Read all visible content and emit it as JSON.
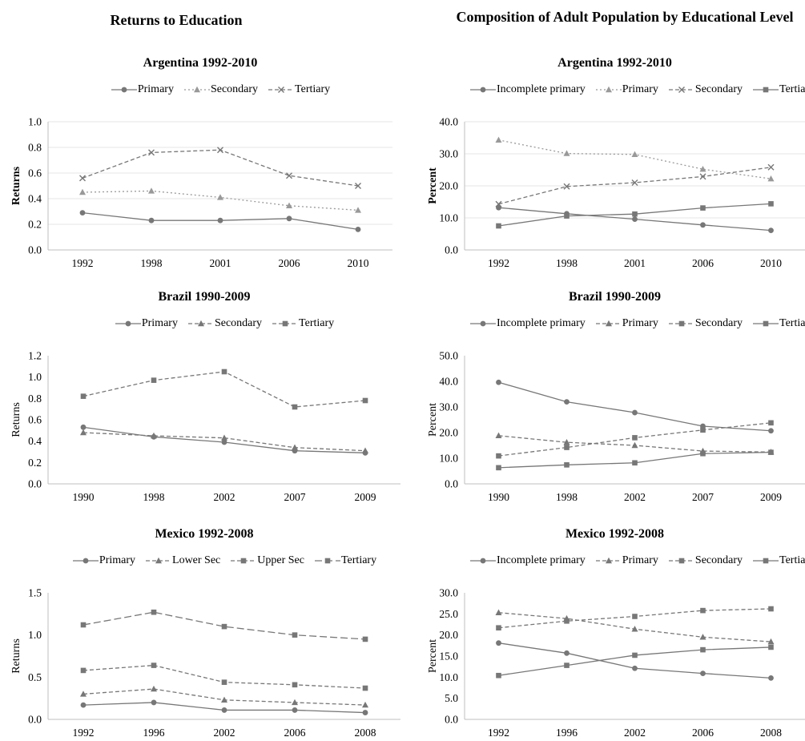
{
  "headings": {
    "left": "Returns to Education",
    "right": "Composition of Adult Population by Educational Level"
  },
  "chart_data": [
    {
      "type": "line",
      "title": "Argentina 1992-2010",
      "ylabel": "Returns",
      "ylabel_bold": true,
      "categories": [
        "1992",
        "1998",
        "2001",
        "2006",
        "2010"
      ],
      "ylim": [
        0,
        1.0
      ],
      "yticks": [
        "0.0",
        "0.2",
        "0.4",
        "0.6",
        "0.8",
        "1.0"
      ],
      "grid": true,
      "legend": "top",
      "series": [
        {
          "name": "Primary",
          "marker": "circle",
          "dash": "solid",
          "values": [
            0.29,
            0.23,
            0.23,
            0.245,
            0.16
          ]
        },
        {
          "name": "Secondary",
          "marker": "triangle",
          "dash": "dotted",
          "color": "#999999",
          "values": [
            0.45,
            0.46,
            0.41,
            0.345,
            0.31
          ]
        },
        {
          "name": "Tertiary",
          "marker": "x",
          "dash": "dashed",
          "values": [
            0.56,
            0.76,
            0.78,
            0.58,
            0.5
          ]
        }
      ]
    },
    {
      "type": "line",
      "title": "Argentina 1992-2010",
      "ylabel": "Percent",
      "ylabel_bold": true,
      "categories": [
        "1992",
        "1998",
        "2001",
        "2006",
        "2010"
      ],
      "ylim": [
        0,
        40
      ],
      "yticks": [
        "0.0",
        "10.0",
        "20.0",
        "30.0",
        "40.0"
      ],
      "grid": true,
      "legend": "top",
      "series": [
        {
          "name": "Incomplete primary",
          "marker": "circle",
          "dash": "solid",
          "values": [
            13.2,
            11.3,
            9.6,
            7.8,
            6.1
          ]
        },
        {
          "name": "Primary",
          "marker": "triangle",
          "dash": "dotted",
          "color": "#999999",
          "values": [
            34.3,
            30.1,
            29.8,
            25.2,
            22.2
          ]
        },
        {
          "name": "Secondary",
          "marker": "x",
          "dash": "dashed",
          "values": [
            14.3,
            19.8,
            21.0,
            22.9,
            25.8
          ]
        },
        {
          "name": "Tertiary",
          "marker": "square",
          "dash": "solid",
          "values": [
            7.5,
            10.6,
            11.2,
            13.1,
            14.4
          ]
        }
      ]
    },
    {
      "type": "line",
      "title": "Brazil 1990-2009",
      "ylabel": "Returns",
      "ylabel_bold": false,
      "categories": [
        "1990",
        "1998",
        "2002",
        "2007",
        "2009"
      ],
      "ylim": [
        0,
        1.2
      ],
      "yticks": [
        "0.0",
        "0.2",
        "0.4",
        "0.6",
        "0.8",
        "1.0",
        "1.2"
      ],
      "grid": false,
      "legend": "top",
      "series": [
        {
          "name": "Primary",
          "marker": "circle",
          "dash": "solid",
          "values": [
            0.53,
            0.44,
            0.39,
            0.31,
            0.29
          ]
        },
        {
          "name": "Secondary",
          "marker": "triangle",
          "dash": "dashed",
          "values": [
            0.48,
            0.45,
            0.43,
            0.34,
            0.31
          ]
        },
        {
          "name": "Tertiary",
          "marker": "square",
          "dash": "dashed",
          "values": [
            0.82,
            0.97,
            1.05,
            0.72,
            0.78
          ]
        }
      ]
    },
    {
      "type": "line",
      "title": "Brazil 1990-2009",
      "ylabel": "Percent",
      "ylabel_bold": false,
      "categories": [
        "1990",
        "1998",
        "2002",
        "2007",
        "2009"
      ],
      "ylim": [
        0,
        50
      ],
      "yticks": [
        "0.0",
        "10.0",
        "20.0",
        "30.0",
        "40.0",
        "50.0"
      ],
      "grid": false,
      "legend": "top",
      "series": [
        {
          "name": "Incomplete primary",
          "marker": "circle",
          "dash": "solid",
          "values": [
            39.6,
            32.0,
            27.8,
            22.5,
            20.7
          ]
        },
        {
          "name": "Primary",
          "marker": "triangle",
          "dash": "dashed",
          "values": [
            18.8,
            16.2,
            15.0,
            12.8,
            12.4
          ]
        },
        {
          "name": "Secondary",
          "marker": "square",
          "dash": "dashed",
          "values": [
            10.9,
            14.2,
            18.0,
            21.0,
            23.8
          ]
        },
        {
          "name": "Tertiary",
          "marker": "square",
          "dash": "solid",
          "values": [
            6.3,
            7.4,
            8.2,
            11.8,
            12.3
          ]
        }
      ]
    },
    {
      "type": "line",
      "title": "Mexico 1992-2008",
      "ylabel": "Returns",
      "ylabel_bold": false,
      "categories": [
        "1992",
        "1996",
        "2002",
        "2006",
        "2008"
      ],
      "ylim": [
        0,
        1.5
      ],
      "yticks": [
        "0.0",
        "0.5",
        "1.0",
        "1.5"
      ],
      "grid": false,
      "legend": "top",
      "series": [
        {
          "name": "Primary",
          "marker": "circle",
          "dash": "solid",
          "values": [
            0.17,
            0.2,
            0.11,
            0.11,
            0.08
          ]
        },
        {
          "name": "Lower Sec",
          "marker": "triangle",
          "dash": "dashed",
          "values": [
            0.3,
            0.36,
            0.23,
            0.2,
            0.17
          ]
        },
        {
          "name": "Upper Sec",
          "marker": "square",
          "dash": "dashed",
          "values": [
            0.58,
            0.64,
            0.44,
            0.41,
            0.37
          ]
        },
        {
          "name": "Tertiary",
          "marker": "square",
          "dash": "longdash",
          "values": [
            1.12,
            1.27,
            1.1,
            1.0,
            0.95
          ]
        }
      ]
    },
    {
      "type": "line",
      "title": "Mexico 1992-2008",
      "ylabel": "Percent",
      "ylabel_bold": false,
      "categories": [
        "1992",
        "1996",
        "2002",
        "2006",
        "2008"
      ],
      "ylim": [
        0,
        30
      ],
      "yticks": [
        "0.0",
        "5.0",
        "10.0",
        "15.0",
        "20.0",
        "25.0",
        "30.0"
      ],
      "grid": false,
      "legend": "top",
      "series": [
        {
          "name": "Incomplete primary",
          "marker": "circle",
          "dash": "solid",
          "values": [
            18.1,
            15.7,
            12.1,
            10.9,
            9.8
          ]
        },
        {
          "name": "Primary",
          "marker": "triangle",
          "dash": "dashed",
          "values": [
            25.3,
            23.9,
            21.4,
            19.5,
            18.4
          ]
        },
        {
          "name": "Secondary",
          "marker": "square",
          "dash": "dashed",
          "values": [
            21.7,
            23.3,
            24.4,
            25.8,
            26.2
          ]
        },
        {
          "name": "Tertiary",
          "marker": "square",
          "dash": "solid",
          "values": [
            10.4,
            12.8,
            15.2,
            16.5,
            17.1
          ]
        }
      ]
    }
  ]
}
